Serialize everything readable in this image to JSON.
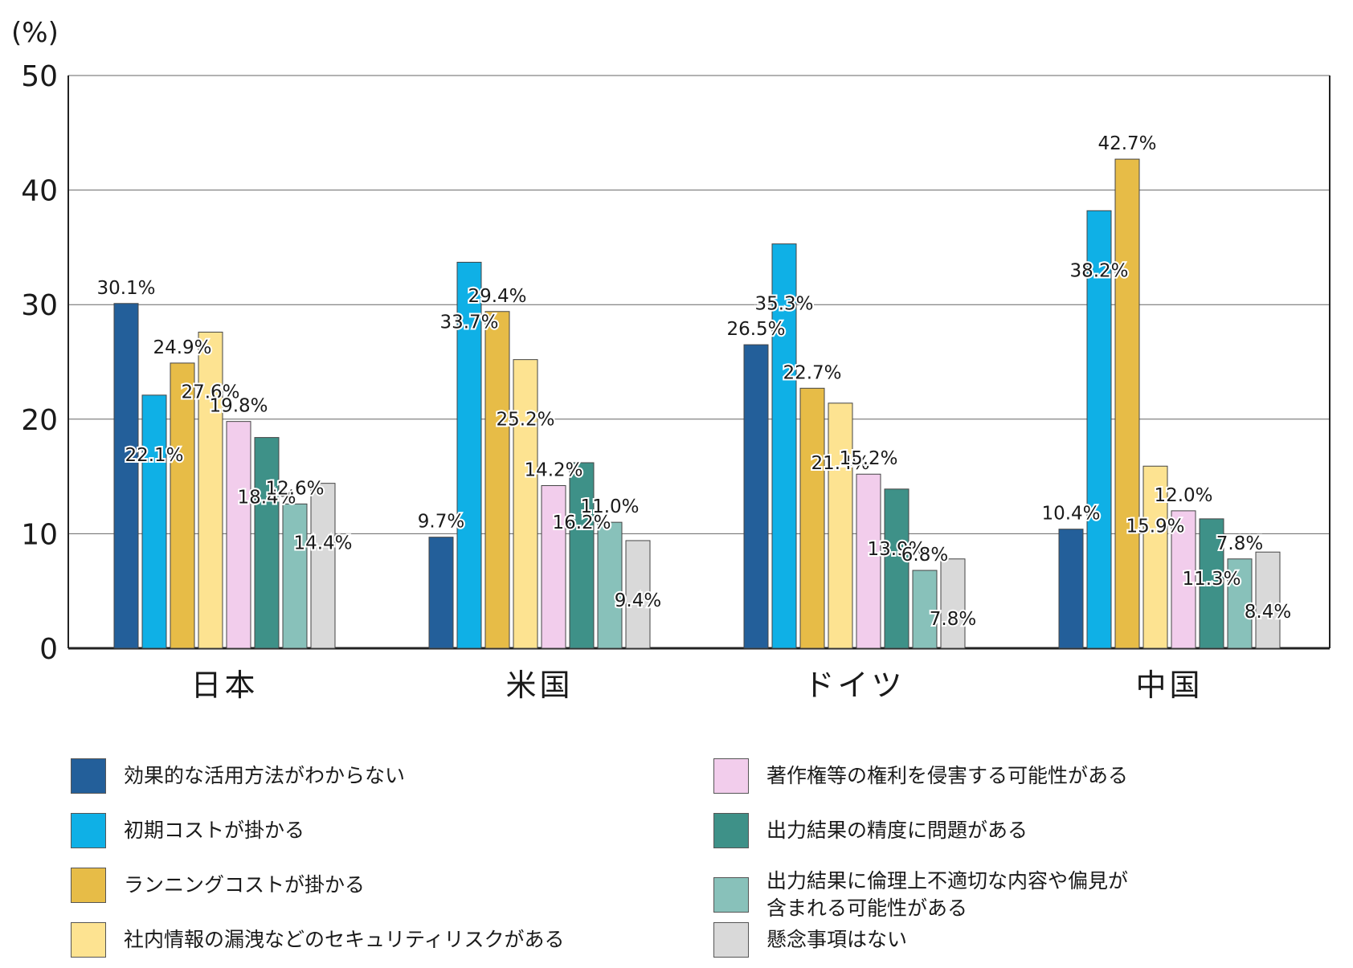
{
  "chart_data": {
    "type": "bar",
    "unit_label": "(%)",
    "ylim": [
      0,
      50
    ],
    "yticks": [
      0,
      10,
      20,
      30,
      40,
      50
    ],
    "grid": true,
    "legend_position": "bottom",
    "categories": [
      "日本",
      "米国",
      "ドイツ",
      "中国"
    ],
    "series": [
      {
        "name": "効果的な活用方法がわからない",
        "color": "#235F9A",
        "values": [
          30.1,
          9.7,
          26.5,
          10.4
        ],
        "labels": [
          "30.1%",
          "9.7%",
          "26.5%",
          "10.4%"
        ]
      },
      {
        "name": "初期コストが掛かる",
        "color": "#0FB0E6",
        "values": [
          22.1,
          33.7,
          35.3,
          38.2
        ],
        "labels": [
          "22.1%",
          "33.7%",
          "35.3%",
          "38.2%"
        ]
      },
      {
        "name": "ランニングコストが掛かる",
        "color": "#E7BC47",
        "values": [
          24.9,
          29.4,
          22.7,
          42.7
        ],
        "labels": [
          "24.9%",
          "29.4%",
          "22.7%",
          "42.7%"
        ]
      },
      {
        "name": "社内情報の漏洩などのセキュリティリスクがある",
        "color": "#FDE391",
        "values": [
          27.6,
          25.2,
          21.4,
          15.9
        ],
        "labels": [
          "27.6%",
          "25.2%",
          "21.4%",
          "15.9%"
        ]
      },
      {
        "name": "著作権等の権利を侵害する可能性がある",
        "color": "#F2CDEC",
        "values": [
          19.8,
          14.2,
          15.2,
          12.0
        ],
        "labels": [
          "19.8%",
          "14.2%",
          "15.2%",
          "12.0%"
        ]
      },
      {
        "name": "出力結果の精度に問題がある",
        "color": "#3E9188",
        "values": [
          18.4,
          16.2,
          13.9,
          11.3
        ],
        "labels": [
          "18.4%",
          "16.2%",
          "13.9%",
          "11.3%"
        ]
      },
      {
        "name": "出力結果に倫理上不適切な内容や偏見が\n含まれる可能性がある",
        "color": "#88C1BA",
        "values": [
          12.6,
          11.0,
          6.8,
          7.8
        ],
        "labels": [
          "12.6%",
          "11.0%",
          "6.8%",
          "7.8%"
        ]
      },
      {
        "name": "懸念事項はない",
        "color": "#D9D9D9",
        "values": [
          14.4,
          9.4,
          7.8,
          8.4
        ],
        "labels": [
          "14.4%",
          "9.4%",
          "7.8%",
          "8.4%"
        ]
      }
    ]
  }
}
